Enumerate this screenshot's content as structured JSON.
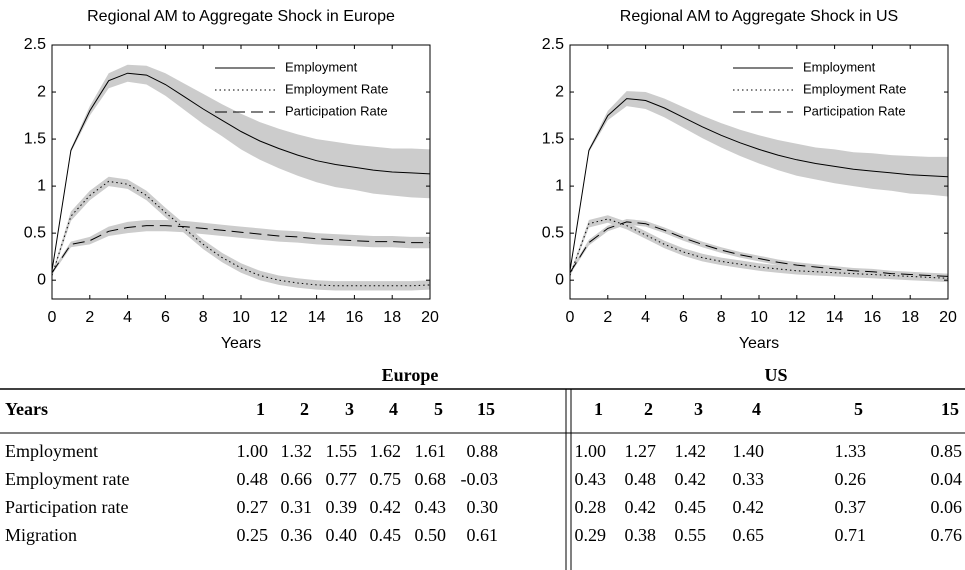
{
  "chart_data": [
    {
      "type": "line",
      "title": "Regional AM to Aggregate Shock in Europe",
      "xlabel": "Years",
      "x": [
        0,
        1,
        2,
        3,
        4,
        5,
        6,
        7,
        8,
        9,
        10,
        11,
        12,
        13,
        14,
        15,
        16,
        17,
        18,
        19,
        20
      ],
      "xlim": [
        0,
        20
      ],
      "xticks": [
        0,
        2,
        4,
        6,
        8,
        10,
        12,
        14,
        16,
        18,
        20
      ],
      "ylim": [
        -0.2,
        2.5
      ],
      "yticks": [
        0,
        0.5,
        1,
        1.5,
        2,
        2.5
      ],
      "legend": "upper right",
      "band_color": "#cccccc",
      "series": [
        {
          "name": "Employment",
          "color": "#000000",
          "linestyle": "solid",
          "values": [
            0.1,
            1.38,
            1.8,
            2.12,
            2.2,
            2.18,
            2.08,
            1.95,
            1.82,
            1.7,
            1.58,
            1.48,
            1.4,
            1.33,
            1.27,
            1.23,
            1.2,
            1.17,
            1.15,
            1.14,
            1.13
          ],
          "lower": [
            0.1,
            1.36,
            1.75,
            2.04,
            2.11,
            2.08,
            1.96,
            1.81,
            1.66,
            1.53,
            1.39,
            1.28,
            1.19,
            1.11,
            1.04,
            0.99,
            0.96,
            0.92,
            0.9,
            0.88,
            0.87
          ],
          "upper": [
            0.1,
            1.4,
            1.85,
            2.2,
            2.29,
            2.28,
            2.2,
            2.09,
            1.98,
            1.87,
            1.77,
            1.68,
            1.61,
            1.55,
            1.5,
            1.47,
            1.44,
            1.42,
            1.4,
            1.4,
            1.39
          ]
        },
        {
          "name": "Employment Rate",
          "color": "#000000",
          "linestyle": "dotted",
          "values": [
            0.05,
            0.68,
            0.9,
            1.05,
            1.02,
            0.9,
            0.72,
            0.55,
            0.38,
            0.24,
            0.13,
            0.05,
            0,
            -0.03,
            -0.05,
            -0.06,
            -0.06,
            -0.06,
            -0.06,
            -0.06,
            -0.05
          ],
          "lower": [
            0.03,
            0.63,
            0.85,
            1.0,
            0.97,
            0.85,
            0.67,
            0.5,
            0.33,
            0.19,
            0.08,
            0,
            -0.05,
            -0.08,
            -0.1,
            -0.11,
            -0.11,
            -0.11,
            -0.11,
            -0.11,
            -0.1
          ],
          "upper": [
            0.07,
            0.73,
            0.95,
            1.1,
            1.07,
            0.95,
            0.77,
            0.6,
            0.43,
            0.29,
            0.18,
            0.1,
            0.05,
            0.02,
            0,
            -0.01,
            -0.01,
            -0.01,
            -0.01,
            -0.01,
            0
          ]
        },
        {
          "name": "Participation Rate",
          "color": "#000000",
          "linestyle": "dashed",
          "values": [
            0.08,
            0.38,
            0.42,
            0.52,
            0.56,
            0.58,
            0.58,
            0.57,
            0.55,
            0.53,
            0.51,
            0.49,
            0.47,
            0.46,
            0.44,
            0.43,
            0.42,
            0.41,
            0.41,
            0.4,
            0.4
          ],
          "lower": [
            0.06,
            0.35,
            0.38,
            0.47,
            0.5,
            0.52,
            0.52,
            0.51,
            0.49,
            0.47,
            0.45,
            0.43,
            0.41,
            0.4,
            0.38,
            0.37,
            0.36,
            0.35,
            0.35,
            0.34,
            0.34
          ],
          "upper": [
            0.1,
            0.41,
            0.46,
            0.57,
            0.62,
            0.64,
            0.64,
            0.63,
            0.61,
            0.59,
            0.57,
            0.55,
            0.53,
            0.52,
            0.5,
            0.49,
            0.48,
            0.47,
            0.47,
            0.46,
            0.46
          ]
        }
      ]
    },
    {
      "type": "line",
      "title": "Regional AM to Aggregate Shock in US",
      "xlabel": "Years",
      "x": [
        0,
        1,
        2,
        3,
        4,
        5,
        6,
        7,
        8,
        9,
        10,
        11,
        12,
        13,
        14,
        15,
        16,
        17,
        18,
        19,
        20
      ],
      "xlim": [
        0,
        20
      ],
      "xticks": [
        0,
        2,
        4,
        6,
        8,
        10,
        12,
        14,
        16,
        18,
        20
      ],
      "ylim": [
        -0.2,
        2.5
      ],
      "yticks": [
        0,
        0.5,
        1,
        1.5,
        2,
        2.5
      ],
      "legend": "upper right",
      "band_color": "#cccccc",
      "series": [
        {
          "name": "Employment",
          "color": "#000000",
          "linestyle": "solid",
          "values": [
            0.1,
            1.38,
            1.75,
            1.93,
            1.91,
            1.83,
            1.73,
            1.63,
            1.54,
            1.46,
            1.39,
            1.33,
            1.28,
            1.24,
            1.21,
            1.18,
            1.16,
            1.14,
            1.12,
            1.11,
            1.1
          ],
          "lower": [
            0.1,
            1.36,
            1.7,
            1.85,
            1.82,
            1.73,
            1.62,
            1.51,
            1.41,
            1.32,
            1.24,
            1.17,
            1.11,
            1.07,
            1.03,
            1.0,
            0.97,
            0.95,
            0.92,
            0.91,
            0.89
          ],
          "upper": [
            0.1,
            1.4,
            1.8,
            2.01,
            2.0,
            1.93,
            1.84,
            1.75,
            1.67,
            1.6,
            1.54,
            1.49,
            1.45,
            1.41,
            1.39,
            1.36,
            1.35,
            1.33,
            1.32,
            1.31,
            1.31
          ]
        },
        {
          "name": "Employment Rate",
          "color": "#000000",
          "linestyle": "dotted",
          "values": [
            0.05,
            0.6,
            0.65,
            0.58,
            0.48,
            0.38,
            0.3,
            0.24,
            0.2,
            0.17,
            0.14,
            0.12,
            0.1,
            0.09,
            0.08,
            0.07,
            0.06,
            0.05,
            0.04,
            0.03,
            0.02
          ],
          "lower": [
            0.03,
            0.56,
            0.61,
            0.54,
            0.44,
            0.34,
            0.26,
            0.2,
            0.16,
            0.13,
            0.1,
            0.08,
            0.06,
            0.05,
            0.04,
            0.03,
            0.02,
            0.01,
            0,
            -0.01,
            -0.02
          ],
          "upper": [
            0.07,
            0.64,
            0.69,
            0.62,
            0.52,
            0.42,
            0.34,
            0.28,
            0.24,
            0.21,
            0.18,
            0.16,
            0.14,
            0.13,
            0.12,
            0.11,
            0.1,
            0.09,
            0.08,
            0.07,
            0.06
          ]
        },
        {
          "name": "Participation Rate",
          "color": "#000000",
          "linestyle": "dashed",
          "values": [
            0.08,
            0.4,
            0.55,
            0.62,
            0.6,
            0.53,
            0.45,
            0.38,
            0.32,
            0.27,
            0.23,
            0.19,
            0.16,
            0.14,
            0.12,
            0.1,
            0.09,
            0.07,
            0.06,
            0.05,
            0.04
          ],
          "lower": [
            0.06,
            0.37,
            0.52,
            0.59,
            0.57,
            0.5,
            0.42,
            0.35,
            0.29,
            0.24,
            0.2,
            0.16,
            0.13,
            0.11,
            0.09,
            0.07,
            0.06,
            0.04,
            0.03,
            0.02,
            0.01
          ],
          "upper": [
            0.1,
            0.43,
            0.58,
            0.65,
            0.63,
            0.56,
            0.48,
            0.41,
            0.35,
            0.3,
            0.26,
            0.22,
            0.19,
            0.17,
            0.15,
            0.13,
            0.12,
            0.1,
            0.09,
            0.08,
            0.07
          ]
        }
      ]
    }
  ],
  "table": {
    "groups": [
      "Europe",
      "US"
    ],
    "header": [
      "Years",
      "1",
      "2",
      "3",
      "4",
      "5",
      "15",
      "1",
      "2",
      "3",
      "4",
      "5",
      "15"
    ],
    "rows": [
      [
        "Employment",
        "1.00",
        "1.32",
        "1.55",
        "1.62",
        "1.61",
        "0.88",
        "1.00",
        "1.27",
        "1.42",
        "1.40",
        "1.33",
        "0.85"
      ],
      [
        "Employment rate",
        "0.48",
        "0.66",
        "0.77",
        "0.75",
        "0.68",
        "-0.03",
        "0.43",
        "0.48",
        "0.42",
        "0.33",
        "0.26",
        "0.04"
      ],
      [
        "Participation rate",
        "0.27",
        "0.31",
        "0.39",
        "0.42",
        "0.43",
        "0.30",
        "0.28",
        "0.42",
        "0.45",
        "0.42",
        "0.37",
        "0.06"
      ],
      [
        "Migration",
        "0.25",
        "0.36",
        "0.40",
        "0.45",
        "0.50",
        "0.61",
        "0.29",
        "0.38",
        "0.55",
        "0.65",
        "0.71",
        "0.76"
      ]
    ]
  }
}
